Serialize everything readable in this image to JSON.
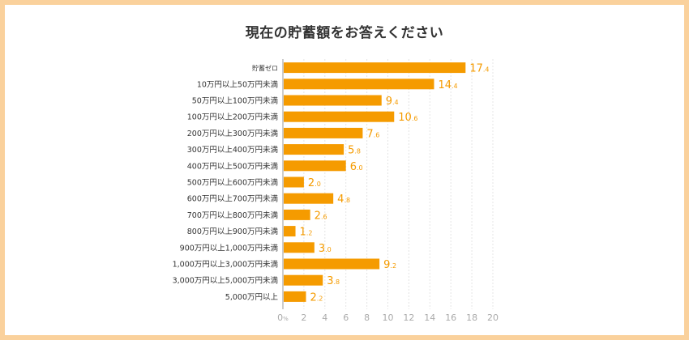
{
  "chart_data": {
    "type": "bar",
    "orientation": "horizontal",
    "title": "現在の貯蓄額をお答えください",
    "xlabel": "",
    "ylabel": "",
    "x_unit_label": "%",
    "xlim": [
      0,
      20
    ],
    "x_ticks": [
      "0",
      "2",
      "4",
      "6",
      "8",
      "10",
      "12",
      "14",
      "16",
      "18",
      "20"
    ],
    "grid": true,
    "legend": "none",
    "bar_color": "#f59b00",
    "label_color": "#f59b00",
    "categories": [
      "貯蓄ゼロ",
      "10万円以上50万円未満",
      "50万円以上100万円未満",
      "100万円以上200万円未満",
      "200万円以上300万円未満",
      "300万円以上400万円未満",
      "400万円以上500万円未満",
      "500万円以上600万円未満",
      "600万円以上700万円未満",
      "700万円以上800万円未満",
      "800万円以上900万円未満",
      "900万円以上1,000万円未満",
      "1,000万円以上3,000万円未満",
      "3,000万円以上5,000万円未満",
      "5,000万円以上"
    ],
    "values": [
      17.4,
      14.4,
      9.4,
      10.6,
      7.6,
      5.8,
      6.0,
      2.0,
      4.8,
      2.6,
      1.2,
      3.0,
      9.2,
      3.8,
      2.2
    ]
  }
}
